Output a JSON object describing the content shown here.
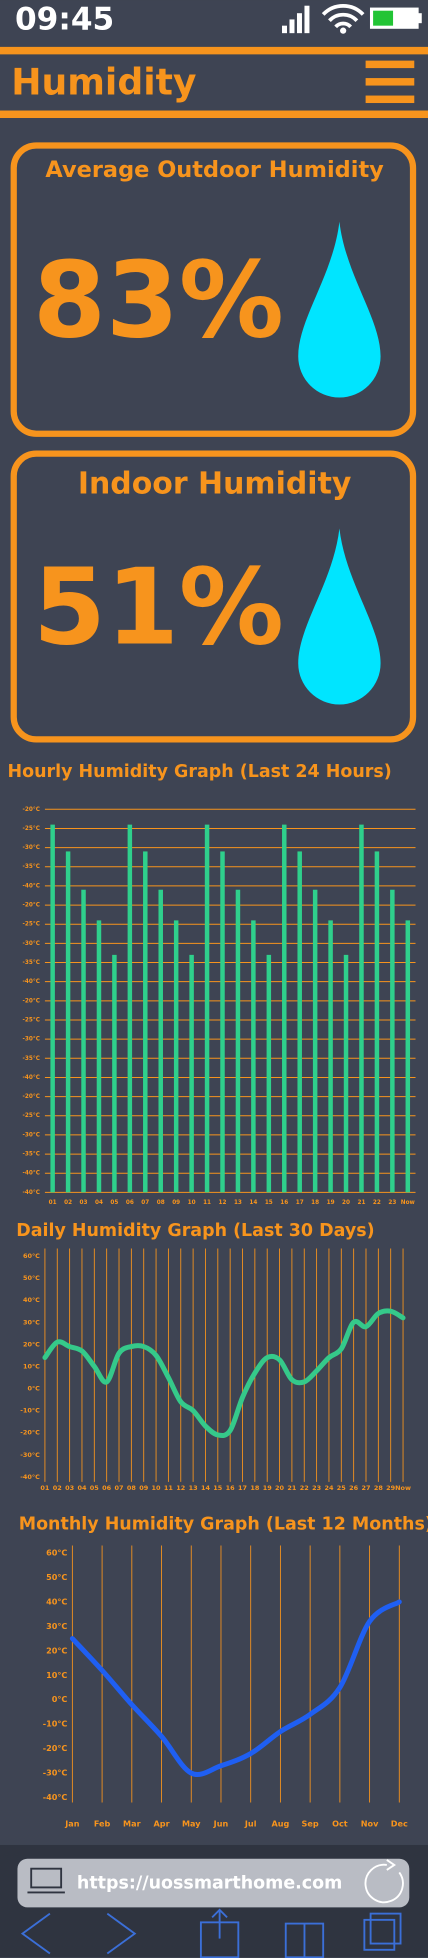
{
  "status_bar": {
    "time": "09:45"
  },
  "header": {
    "title": "Humidity"
  },
  "cards": [
    {
      "title": "Average Outdoor Humidity",
      "value": "83%"
    },
    {
      "title": "Indoor Humidity",
      "value": "51%"
    }
  ],
  "chart_data": [
    {
      "type": "bar",
      "title": "Hourly Humidity Graph (Last 24 Hours)",
      "color": "#2fd08c",
      "grid": "y",
      "categories": [
        "01",
        "02",
        "03",
        "04",
        "05",
        "06",
        "07",
        "08",
        "09",
        "10",
        "11",
        "12",
        "13",
        "14",
        "15",
        "16",
        "17",
        "18",
        "19",
        "20",
        "21",
        "22",
        "23",
        "Now"
      ],
      "values": [
        19.2,
        17.8,
        15.8,
        14.2,
        12.4,
        19.2,
        17.8,
        15.8,
        14.2,
        12.4,
        19.2,
        17.8,
        15.8,
        14.2,
        12.4,
        19.2,
        17.8,
        15.8,
        14.2,
        12.4,
        19.2,
        17.8,
        15.8,
        14.2
      ],
      "ylim": [
        0,
        20
      ],
      "yticks": [
        {
          "value": 20,
          "label": "-20°C"
        },
        {
          "value": 19,
          "label": "-25°C"
        },
        {
          "value": 18,
          "label": "-30°C"
        },
        {
          "value": 17,
          "label": "-35°C"
        },
        {
          "value": 16,
          "label": "-40°C"
        },
        {
          "value": 15,
          "label": "-20°C"
        },
        {
          "value": 14,
          "label": "-25°C"
        },
        {
          "value": 13,
          "label": "-30°C"
        },
        {
          "value": 12,
          "label": "-35°C"
        },
        {
          "value": 11,
          "label": "-40°C"
        },
        {
          "value": 10,
          "label": "-20°C"
        },
        {
          "value": 9,
          "label": "-25°C"
        },
        {
          "value": 8,
          "label": "-30°C"
        },
        {
          "value": 7,
          "label": "-35°C"
        },
        {
          "value": 6,
          "label": "-40°C"
        },
        {
          "value": 5,
          "label": "-20°C"
        },
        {
          "value": 4,
          "label": "-25°C"
        },
        {
          "value": 3,
          "label": "-30°C"
        },
        {
          "value": 2,
          "label": "-35°C"
        },
        {
          "value": 1,
          "label": "-40°C"
        },
        {
          "value": 0,
          "label": "-40°C"
        }
      ]
    },
    {
      "type": "line",
      "title": "Daily Humidity Graph (Last 30 Days)",
      "color": "#35c98a",
      "grid": "x",
      "categories": [
        "01",
        "02",
        "03",
        "04",
        "05",
        "06",
        "07",
        "08",
        "09",
        "10",
        "11",
        "12",
        "13",
        "14",
        "15",
        "16",
        "17",
        "18",
        "19",
        "20",
        "21",
        "22",
        "23",
        "24",
        "25",
        "26",
        "27",
        "28",
        "29",
        "Now"
      ],
      "values": [
        14,
        21,
        19,
        17,
        10,
        3,
        16,
        19,
        19,
        15,
        5,
        -6,
        -10,
        -17,
        -21,
        -19,
        -4,
        7,
        14,
        13,
        4,
        3,
        8,
        14,
        18,
        30,
        28,
        34,
        35,
        32
      ],
      "ylim": [
        -40,
        60
      ],
      "yticks": [
        {
          "value": 60,
          "label": "60°C"
        },
        {
          "value": 50,
          "label": "50°C"
        },
        {
          "value": 40,
          "label": "40°C"
        },
        {
          "value": 30,
          "label": "30°C"
        },
        {
          "value": 20,
          "label": "20°C"
        },
        {
          "value": 10,
          "label": "10°C"
        },
        {
          "value": 0,
          "label": "0°C"
        },
        {
          "value": -10,
          "label": "-10°C"
        },
        {
          "value": -20,
          "label": "-20°C"
        },
        {
          "value": -30,
          "label": "-30°C"
        },
        {
          "value": -40,
          "label": "-40°C"
        }
      ]
    },
    {
      "type": "line",
      "title": "Monthly Humidity Graph (Last 12 Months)",
      "color": "#1f5ff2",
      "grid": "x",
      "categories": [
        "Jan",
        "Feb",
        "Mar",
        "Apr",
        "May",
        "Jun",
        "Jul",
        "Aug",
        "Sep",
        "Oct",
        "Nov",
        "Dec"
      ],
      "values": [
        25,
        12,
        -2,
        -15,
        -30,
        -27,
        -22,
        -13,
        -6,
        5,
        32,
        40
      ],
      "ylim": [
        -40,
        60
      ],
      "yticks": [
        {
          "value": 60,
          "label": "60°C"
        },
        {
          "value": 50,
          "label": "50°C"
        },
        {
          "value": 40,
          "label": "40°C"
        },
        {
          "value": 30,
          "label": "30°C"
        },
        {
          "value": 20,
          "label": "20°C"
        },
        {
          "value": 10,
          "label": "10°C"
        },
        {
          "value": 0,
          "label": "0°C"
        },
        {
          "value": -10,
          "label": "-10°C"
        },
        {
          "value": -20,
          "label": "-20°C"
        },
        {
          "value": -30,
          "label": "-30°C"
        },
        {
          "value": -40,
          "label": "-40°C"
        }
      ]
    }
  ],
  "browser": {
    "url": "https://uossmarthome.com"
  }
}
